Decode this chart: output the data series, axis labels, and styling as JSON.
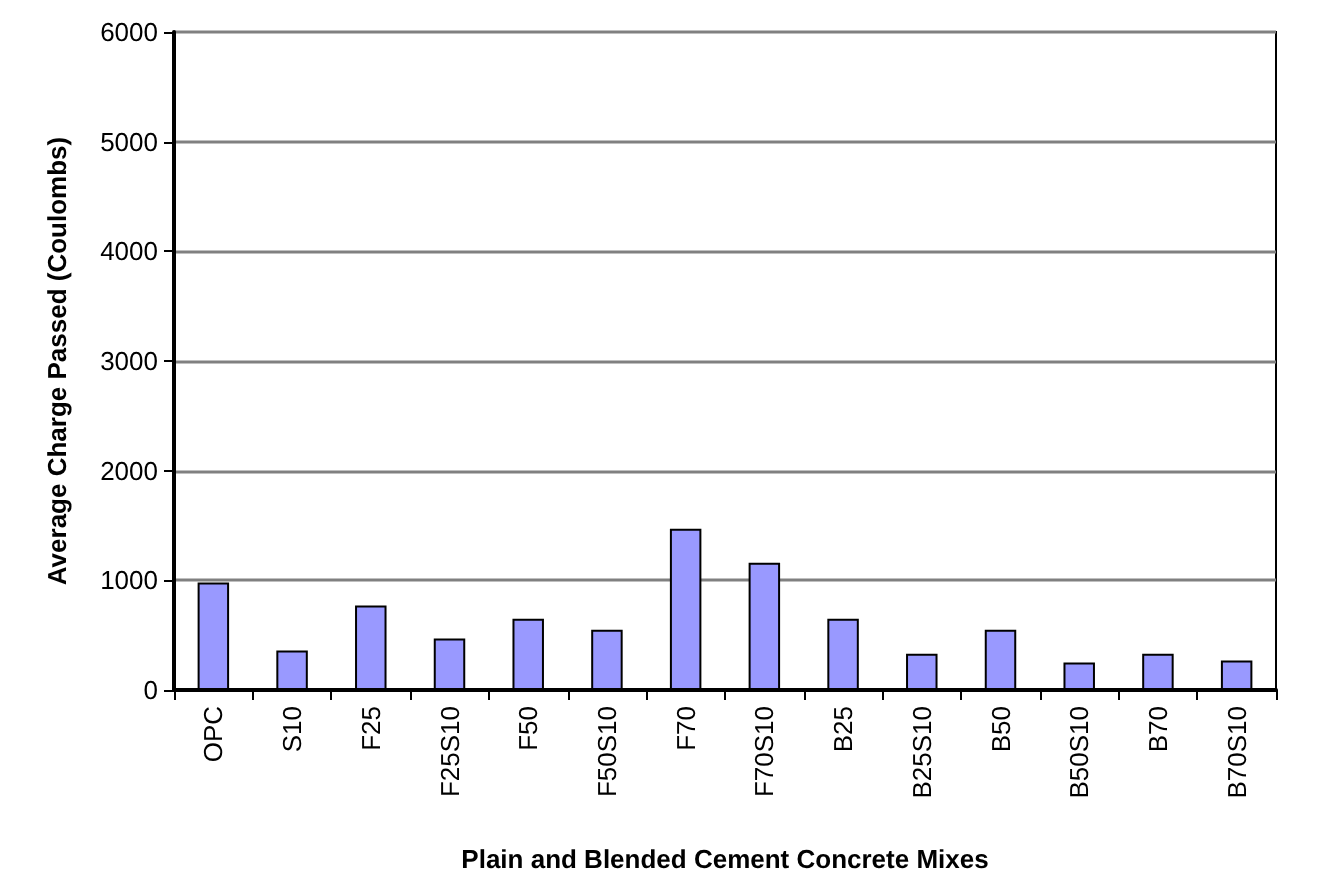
{
  "chart_data": {
    "type": "bar",
    "xlabel": "Plain and Blended Cement Concrete Mixes",
    "ylabel": "Average Charge Passed (Coulombs)",
    "categories": [
      "OPC",
      "S10",
      "F25",
      "F25S10",
      "F50",
      "F50S10",
      "F70",
      "F70S10",
      "B25",
      "B25S10",
      "B50",
      "B50S10",
      "B70",
      "B70S10"
    ],
    "values": [
      980,
      360,
      770,
      470,
      650,
      550,
      1470,
      1160,
      650,
      330,
      550,
      250,
      330,
      270
    ],
    "color": "#9999ff",
    "ylim": [
      0,
      6000
    ],
    "yticks": [
      0,
      1000,
      2000,
      3000,
      4000,
      5000,
      6000
    ],
    "grid": "y"
  }
}
